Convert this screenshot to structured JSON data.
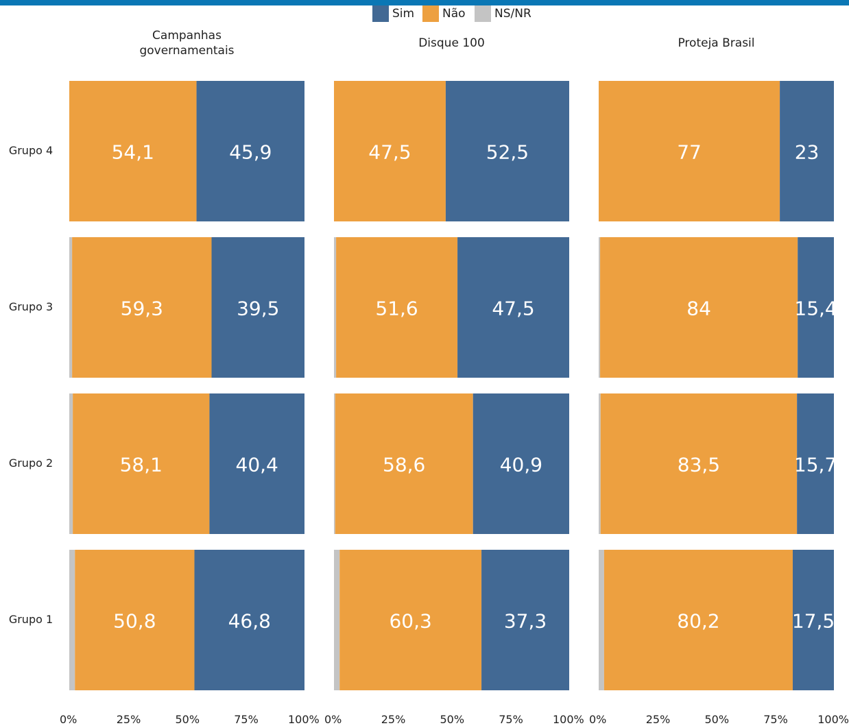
{
  "colors": {
    "top_bar": "#0a77b5",
    "sim": "#426994",
    "nao": "#eda040",
    "nsnr": "#c4c4c4",
    "value_label": "#ffffff"
  },
  "chart_data": {
    "type": "bar",
    "orientation": "horizontal",
    "stacked": true,
    "legend": {
      "placement": "top-center",
      "entries": [
        {
          "key": "sim",
          "label": "Sim"
        },
        {
          "key": "nao",
          "label": "Não"
        },
        {
          "key": "nsnr",
          "label": "NS/NR"
        }
      ]
    },
    "categories": [
      "Grupo 4",
      "Grupo 3",
      "Grupo 2",
      "Grupo 1"
    ],
    "x_ticks": [
      "0%",
      "25%",
      "50%",
      "75%",
      "100%"
    ],
    "xlim": [
      0,
      100
    ],
    "grid": false,
    "panels": [
      {
        "title": "Campanhas\ngovernamentais",
        "stack_order": [
          "nsnr",
          "nao",
          "sim"
        ],
        "series": [
          {
            "key": "nsnr",
            "values": [
              0,
              1.2,
              1.5,
              2.4
            ]
          },
          {
            "key": "nao",
            "values": [
              54.1,
              59.3,
              58.1,
              50.8
            ]
          },
          {
            "key": "sim",
            "values": [
              45.9,
              39.5,
              40.4,
              46.8
            ]
          }
        ],
        "labels": {
          "nao": [
            "54,1",
            "59,3",
            "58,1",
            "50,8"
          ],
          "sim": [
            "45,9",
            "39,5",
            "40,4",
            "46,8"
          ]
        }
      },
      {
        "title": "Disque 100",
        "stack_order": [
          "nsnr",
          "nao",
          "sim"
        ],
        "series": [
          {
            "key": "nsnr",
            "values": [
              0,
              0.9,
              0.5,
              2.4
            ]
          },
          {
            "key": "nao",
            "values": [
              47.5,
              51.6,
              58.6,
              60.3
            ]
          },
          {
            "key": "sim",
            "values": [
              52.5,
              47.5,
              40.9,
              37.3
            ]
          }
        ],
        "labels": {
          "nao": [
            "47,5",
            "51,6",
            "58,6",
            "60,3"
          ],
          "sim": [
            "52,5",
            "47,5",
            "40,9",
            "37,3"
          ]
        }
      },
      {
        "title": "Proteja Brasil",
        "stack_order": [
          "nsnr",
          "nao",
          "sim"
        ],
        "series": [
          {
            "key": "nsnr",
            "values": [
              0,
              0.6,
              0.8,
              2.3
            ]
          },
          {
            "key": "nao",
            "values": [
              77,
              84,
              83.5,
              80.2
            ]
          },
          {
            "key": "sim",
            "values": [
              23,
              15.4,
              15.7,
              17.5
            ]
          }
        ],
        "labels": {
          "nao": [
            "77",
            "84",
            "83,5",
            "80,2"
          ],
          "sim": [
            "23",
            "15,4",
            "15,7",
            "17,5"
          ]
        }
      }
    ]
  }
}
